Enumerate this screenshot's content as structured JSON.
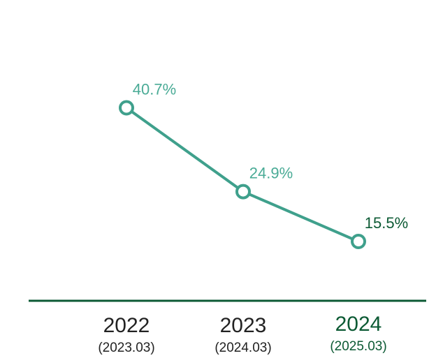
{
  "chart_data": {
    "type": "line",
    "categories": [
      "2022",
      "2023",
      "2024"
    ],
    "sublabels": [
      "(2023.03)",
      "(2024.03)",
      "(2025.03)"
    ],
    "values": [
      40.7,
      24.9,
      15.5
    ],
    "value_labels": [
      "40.7%",
      "24.9%",
      "15.5%"
    ],
    "unit": "%",
    "ylim": [
      0,
      60
    ],
    "grid": false,
    "legend": "none",
    "highlight_index": 2
  },
  "colors": {
    "line": "#3fa08c",
    "label": "#4aab96",
    "highlight": "#0c5a34",
    "category": "#222222",
    "axis": "#0c5a34"
  }
}
